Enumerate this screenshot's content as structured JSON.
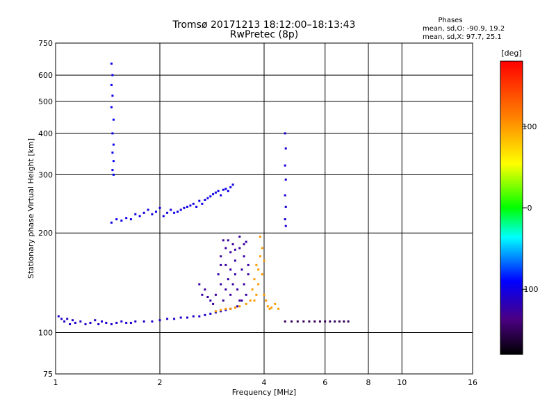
{
  "title": {
    "line1": "Tromsø 20171213 18:12:00–18:13:43",
    "line2": "RwPretec (8p)"
  },
  "stats": {
    "header": "Phases",
    "line1": "mean, sd,O: -90.9, 19.2",
    "line2": "mean, sd,X: 97.7, 25.1"
  },
  "chart_data": {
    "type": "scatter",
    "xlabel": "Frequency [MHz]",
    "ylabel": "Stationary phase Virtual Height [km]",
    "xscale": "log",
    "yscale": "log",
    "xlim": [
      1,
      16
    ],
    "ylim": [
      75,
      750
    ],
    "xticks": [
      1,
      2,
      4,
      6,
      8,
      10,
      16
    ],
    "yticks": [
      75,
      100,
      200,
      300,
      400,
      500,
      600,
      750
    ],
    "grid": true,
    "colorbar": {
      "label": "[deg]",
      "range": [
        -180,
        180
      ],
      "ticks": [
        100,
        0,
        -100
      ]
    },
    "series": [
      {
        "phase_deg": -110,
        "points": [
          [
            1.02,
            112
          ],
          [
            1.04,
            110
          ],
          [
            1.06,
            108
          ],
          [
            1.08,
            110
          ],
          [
            1.1,
            106
          ],
          [
            1.12,
            109
          ],
          [
            1.14,
            107
          ],
          [
            1.18,
            108
          ],
          [
            1.22,
            106
          ],
          [
            1.26,
            107
          ],
          [
            1.3,
            109
          ],
          [
            1.33,
            106
          ],
          [
            1.36,
            108
          ],
          [
            1.4,
            107
          ],
          [
            1.45,
            106
          ],
          [
            1.5,
            107
          ],
          [
            1.55,
            108
          ],
          [
            1.6,
            107
          ],
          [
            1.65,
            107
          ],
          [
            1.7,
            108
          ],
          [
            1.8,
            108
          ],
          [
            1.9,
            108
          ],
          [
            2.0,
            109
          ],
          [
            2.1,
            110
          ],
          [
            2.2,
            110
          ],
          [
            2.3,
            111
          ],
          [
            2.4,
            111
          ],
          [
            2.5,
            112
          ],
          [
            2.6,
            112
          ],
          [
            2.7,
            113
          ],
          [
            2.8,
            114
          ],
          [
            2.9,
            115
          ],
          [
            3.0,
            116
          ],
          [
            3.1,
            117
          ],
          [
            3.2,
            118
          ],
          [
            3.3,
            119
          ]
        ]
      },
      {
        "phase_deg": -125,
        "points": [
          [
            2.6,
            140
          ],
          [
            2.65,
            130
          ],
          [
            2.7,
            135
          ],
          [
            2.75,
            128
          ],
          [
            2.8,
            125
          ],
          [
            2.85,
            122
          ],
          [
            2.9,
            130
          ],
          [
            2.95,
            150
          ],
          [
            3.0,
            170
          ],
          [
            3.0,
            140
          ],
          [
            3.05,
            190
          ],
          [
            3.05,
            125
          ],
          [
            3.1,
            160
          ],
          [
            3.1,
            180
          ],
          [
            3.15,
            145
          ],
          [
            3.2,
            175
          ],
          [
            3.2,
            130
          ],
          [
            3.25,
            185
          ],
          [
            3.3,
            150
          ],
          [
            3.3,
            165
          ],
          [
            3.35,
            135
          ],
          [
            3.4,
            180
          ],
          [
            3.4,
            125
          ],
          [
            3.45,
            155
          ],
          [
            3.5,
            170
          ],
          [
            3.5,
            140
          ],
          [
            3.55,
            188
          ],
          [
            3.55,
            130
          ],
          [
            3.6,
            160
          ],
          [
            3.6,
            150
          ],
          [
            3.5,
            185
          ],
          [
            3.35,
            120
          ],
          [
            3.2,
            155
          ],
          [
            3.1,
            135
          ],
          [
            3.0,
            160
          ],
          [
            3.25,
            140
          ],
          [
            3.4,
            195
          ],
          [
            3.45,
            125
          ],
          [
            3.15,
            190
          ],
          [
            3.3,
            178
          ]
        ]
      },
      {
        "phase_deg": 100,
        "points": [
          [
            2.9,
            116
          ],
          [
            3.0,
            117
          ],
          [
            3.1,
            118
          ],
          [
            3.2,
            118
          ],
          [
            3.3,
            119
          ],
          [
            3.4,
            120
          ],
          [
            3.55,
            122
          ],
          [
            3.65,
            125
          ],
          [
            3.7,
            135
          ],
          [
            3.75,
            145
          ],
          [
            3.8,
            160
          ],
          [
            3.85,
            140
          ],
          [
            3.9,
            170
          ],
          [
            3.95,
            150
          ],
          [
            4.0,
            130
          ],
          [
            4.05,
            125
          ],
          [
            4.1,
            120
          ],
          [
            4.15,
            118
          ],
          [
            4.2,
            119
          ],
          [
            4.3,
            122
          ],
          [
            4.4,
            118
          ],
          [
            3.9,
            195
          ],
          [
            3.95,
            180
          ],
          [
            4.0,
            165
          ],
          [
            3.85,
            155
          ],
          [
            3.8,
            130
          ],
          [
            3.75,
            125
          ]
        ]
      },
      {
        "phase_deg": -150,
        "points": [
          [
            4.6,
            108
          ],
          [
            4.8,
            108
          ],
          [
            5.0,
            108
          ],
          [
            5.2,
            108
          ],
          [
            5.4,
            108
          ],
          [
            5.6,
            108
          ],
          [
            5.8,
            108
          ],
          [
            6.0,
            108
          ],
          [
            6.2,
            108
          ],
          [
            6.4,
            108
          ],
          [
            6.6,
            108
          ],
          [
            6.8,
            108
          ],
          [
            7.0,
            108
          ]
        ]
      },
      {
        "phase_deg": -100,
        "points": [
          [
            1.45,
            215
          ],
          [
            1.5,
            220
          ],
          [
            1.55,
            218
          ],
          [
            1.6,
            222
          ],
          [
            1.65,
            220
          ],
          [
            1.7,
            228
          ],
          [
            1.75,
            225
          ],
          [
            1.8,
            230
          ],
          [
            1.85,
            235
          ],
          [
            1.9,
            228
          ],
          [
            1.95,
            232
          ],
          [
            2.0,
            238
          ],
          [
            2.05,
            225
          ],
          [
            2.1,
            230
          ],
          [
            2.15,
            235
          ],
          [
            2.2,
            230
          ],
          [
            2.25,
            232
          ],
          [
            2.3,
            235
          ],
          [
            2.35,
            238
          ],
          [
            2.4,
            240
          ],
          [
            2.45,
            242
          ],
          [
            2.5,
            245
          ],
          [
            2.55,
            240
          ],
          [
            2.6,
            250
          ],
          [
            2.65,
            245
          ],
          [
            2.7,
            252
          ],
          [
            2.75,
            255
          ],
          [
            2.8,
            258
          ],
          [
            2.85,
            262
          ],
          [
            2.9,
            265
          ],
          [
            2.95,
            268
          ],
          [
            3.0,
            260
          ],
          [
            3.05,
            270
          ],
          [
            3.1,
            272
          ],
          [
            3.15,
            268
          ],
          [
            3.2,
            275
          ],
          [
            3.25,
            280
          ]
        ]
      },
      {
        "phase_deg": -95,
        "points": [
          [
            1.45,
            650
          ],
          [
            1.46,
            600
          ],
          [
            1.45,
            560
          ],
          [
            1.46,
            520
          ],
          [
            1.45,
            480
          ],
          [
            1.47,
            440
          ],
          [
            1.46,
            400
          ],
          [
            1.47,
            370
          ],
          [
            1.46,
            350
          ],
          [
            1.47,
            330
          ],
          [
            1.46,
            310
          ],
          [
            1.47,
            300
          ]
        ]
      },
      {
        "phase_deg": -105,
        "points": [
          [
            4.6,
            400
          ],
          [
            4.62,
            360
          ],
          [
            4.6,
            320
          ],
          [
            4.62,
            290
          ],
          [
            4.6,
            260
          ],
          [
            4.62,
            240
          ],
          [
            4.6,
            220
          ],
          [
            4.62,
            210
          ]
        ]
      }
    ]
  }
}
